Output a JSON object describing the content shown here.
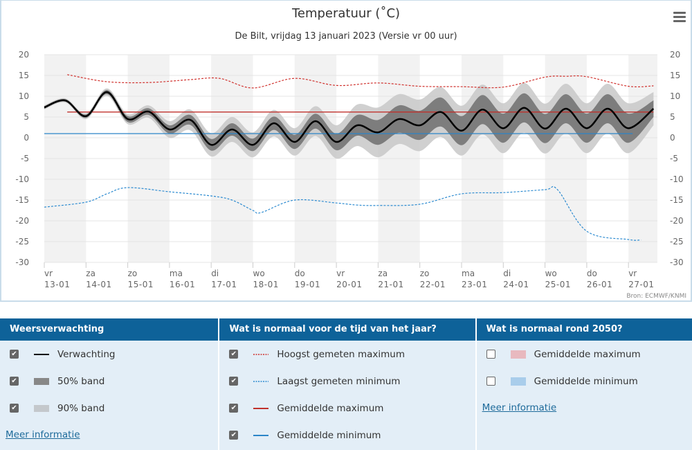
{
  "header": {
    "title": "Temperatuur (˚C)",
    "subtitle": "De Bilt, vrijdag 13 januari 2023 (Versie vr 00 uur)",
    "credit": "Bron: ECMWF/KNMI",
    "menu_icon": "hamburger-icon"
  },
  "chart_data": {
    "type": "line",
    "title": "Temperatuur (˚C)",
    "ylim": [
      -30,
      20
    ],
    "yticks": [
      20,
      15,
      10,
      5,
      0,
      -5,
      -10,
      -15,
      -20,
      -25,
      -30
    ],
    "xticks": [
      [
        "vr",
        "13-01"
      ],
      [
        "za",
        "14-01"
      ],
      [
        "zo",
        "15-01"
      ],
      [
        "ma",
        "16-01"
      ],
      [
        "di",
        "17-01"
      ],
      [
        "wo",
        "18-01"
      ],
      [
        "do",
        "19-01"
      ],
      [
        "vr",
        "20-01"
      ],
      [
        "za",
        "21-01"
      ],
      [
        "zo",
        "22-01"
      ],
      [
        "ma",
        "23-01"
      ],
      [
        "di",
        "24-01"
      ],
      [
        "wo",
        "25-01"
      ],
      [
        "do",
        "26-01"
      ],
      [
        "vr",
        "27-01"
      ]
    ],
    "x_unit": "days since 13-01 00h",
    "forecast": {
      "x": [
        0,
        0.5,
        1,
        1.5,
        2,
        2.5,
        3,
        3.5,
        4,
        4.5,
        5,
        5.5,
        6,
        6.5,
        7,
        7.5,
        8,
        8.5,
        9,
        9.5,
        10,
        10.5,
        11,
        11.5,
        12,
        12.5,
        13,
        13.5,
        14,
        14.6
      ],
      "y": [
        7.3,
        9,
        5.2,
        11,
        4.5,
        6.3,
        2,
        4.3,
        -1.7,
        2,
        -1.7,
        3.5,
        -1,
        4,
        -1,
        3,
        1.3,
        4.5,
        3,
        6.2,
        1.7,
        6.8,
        2.3,
        7.2,
        2.2,
        7,
        2.3,
        7,
        2.3,
        7
      ],
      "band50": [
        0.3,
        0.3,
        0.4,
        0.5,
        0.7,
        0.8,
        1,
        1.2,
        1.4,
        1.5,
        1.5,
        1.6,
        1.7,
        1.8,
        2,
        2.5,
        3,
        3.3,
        3.5,
        3.5,
        3.5,
        3.5,
        3.5,
        3.5,
        3.5,
        3.5,
        3.5,
        3.5,
        3.5,
        2
      ],
      "band90": [
        0.5,
        0.5,
        0.7,
        0.9,
        1.2,
        1.5,
        2,
        2.5,
        2.8,
        3,
        3,
        3.2,
        3.3,
        3.6,
        4,
        5,
        6,
        6,
        6.2,
        6,
        6,
        6,
        6,
        6,
        6,
        6,
        6,
        6,
        6,
        4
      ]
    },
    "record_max": {
      "x": [
        0.55,
        1.5,
        2.5,
        3.5,
        4.2,
        5,
        6,
        7,
        8,
        9,
        10,
        11,
        12,
        12.5,
        13,
        14,
        14.6
      ],
      "y": [
        15.2,
        13.5,
        13.3,
        14,
        14.3,
        12,
        14.3,
        12.6,
        13.2,
        12.4,
        12.3,
        12.2,
        14.6,
        14.8,
        14.7,
        12.4,
        12.5
      ]
    },
    "record_min": {
      "x": [
        0,
        1,
        1.5,
        2,
        3,
        4,
        4.5,
        5,
        5.2,
        6,
        7,
        7.5,
        8,
        9,
        10,
        11,
        12,
        12.3,
        13,
        14,
        14.3
      ],
      "y": [
        -16.7,
        -15.5,
        -13.5,
        -12,
        -13,
        -14,
        -15,
        -17.5,
        -18,
        -15,
        -15.7,
        -16.2,
        -16.3,
        -16,
        -13.5,
        -13.2,
        -12.5,
        -12.5,
        -22.5,
        -24.5,
        -24.6
      ]
    },
    "avg_max": {
      "x": [
        0.55,
        14.6
      ],
      "y": [
        6.2,
        6.2
      ]
    },
    "avg_min": {
      "x": [
        0,
        14.1
      ],
      "y": [
        1,
        1
      ]
    },
    "colors": {
      "forecast": "#000000",
      "band50": "#6e6e6e",
      "band90": "#c8c8c8",
      "record_max": "#d0312d",
      "record_min": "#2b8ad0",
      "avg_max": "#c0302b",
      "avg_min": "#2b85c8"
    }
  },
  "legend": {
    "col1": {
      "title": "Weersverwachting",
      "items": [
        "Verwachting",
        "50% band",
        "90% band"
      ],
      "link": "Meer informatie"
    },
    "col2": {
      "title": "Wat is normaal voor de tijd van het jaar?",
      "items": [
        "Hoogst gemeten maximum",
        "Laagst gemeten minimum",
        "Gemiddelde maximum",
        "Gemiddelde minimum"
      ]
    },
    "col3": {
      "title": "Wat is normaal rond 2050?",
      "items": [
        "Gemiddelde maximum",
        "Gemiddelde minimum"
      ],
      "link": "Meer informatie",
      "swatches": [
        "#e8b9bf",
        "#a9cdeb"
      ]
    }
  }
}
